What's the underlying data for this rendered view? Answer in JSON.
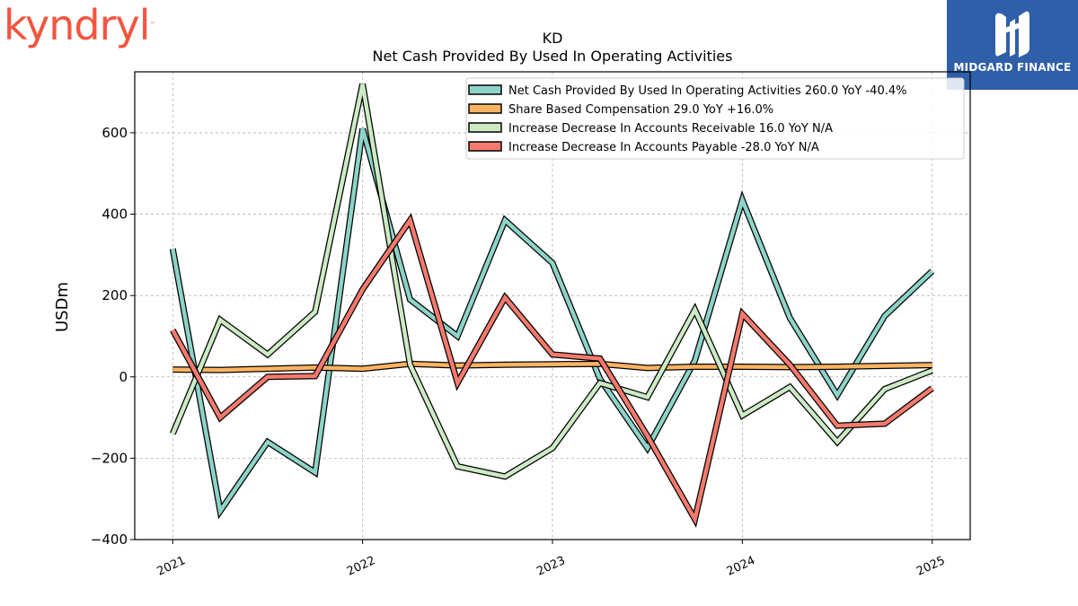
{
  "brand": {
    "logo_text": "kyndryl",
    "partner_name": "MIDGARD FINANCE"
  },
  "chart_data": {
    "type": "line",
    "title": "KD",
    "subtitle": "Net Cash Provided By Used In Operating Activities",
    "ylabel": "USDm",
    "xlabel": "",
    "ylim": [
      -400,
      750
    ],
    "yticks": [
      -400,
      -200,
      0,
      200,
      400,
      600
    ],
    "ytick_labels": [
      "−400",
      "−200",
      "0",
      "200",
      "400",
      "600"
    ],
    "xticks": [
      "2021",
      "2022",
      "2023",
      "2024",
      "2025"
    ],
    "x": [
      2021.0,
      2021.25,
      2021.5,
      2021.75,
      2022.0,
      2022.25,
      2022.5,
      2022.75,
      2023.0,
      2023.25,
      2023.5,
      2023.75,
      2024.0,
      2024.25,
      2024.5,
      2024.75,
      2025.0
    ],
    "grid": true,
    "legend_position": "top-right",
    "series": [
      {
        "name": "Net Cash Provided By Used In Operating Activities",
        "legend_label": "Net Cash Provided By Used In Operating Activities  260.0 YoY -40.4%",
        "color": "#8dd3c7",
        "values": [
          315,
          -330,
          -160,
          -235,
          610,
          190,
          100,
          385,
          280,
          -5,
          -175,
          40,
          435,
          145,
          -45,
          150,
          260
        ]
      },
      {
        "name": "Share Based Compensation",
        "legend_label": "Share Based Compensation  29.0 YoY +16.0%",
        "color": "#fdb462",
        "values": [
          18,
          17,
          20,
          23,
          20,
          32,
          28,
          30,
          31,
          32,
          22,
          25,
          25,
          24,
          25,
          27,
          29
        ]
      },
      {
        "name": "Increase Decrease In Accounts Receivable",
        "legend_label": "Increase Decrease In Accounts Receivable  16.0 YoY N/A",
        "color": "#ccebc5",
        "values": [
          -140,
          140,
          55,
          160,
          720,
          30,
          -220,
          -245,
          -175,
          -15,
          -50,
          165,
          -95,
          -25,
          -160,
          -30,
          16
        ]
      },
      {
        "name": "Increase Decrease In Accounts Payable",
        "legend_label": "Increase Decrease In Accounts Payable  -28.0 YoY N/A",
        "color": "#f47a6e",
        "values": [
          115,
          -100,
          0,
          2,
          215,
          385,
          -15,
          195,
          55,
          45,
          -145,
          -350,
          155,
          30,
          -120,
          -115,
          -28
        ]
      }
    ]
  }
}
